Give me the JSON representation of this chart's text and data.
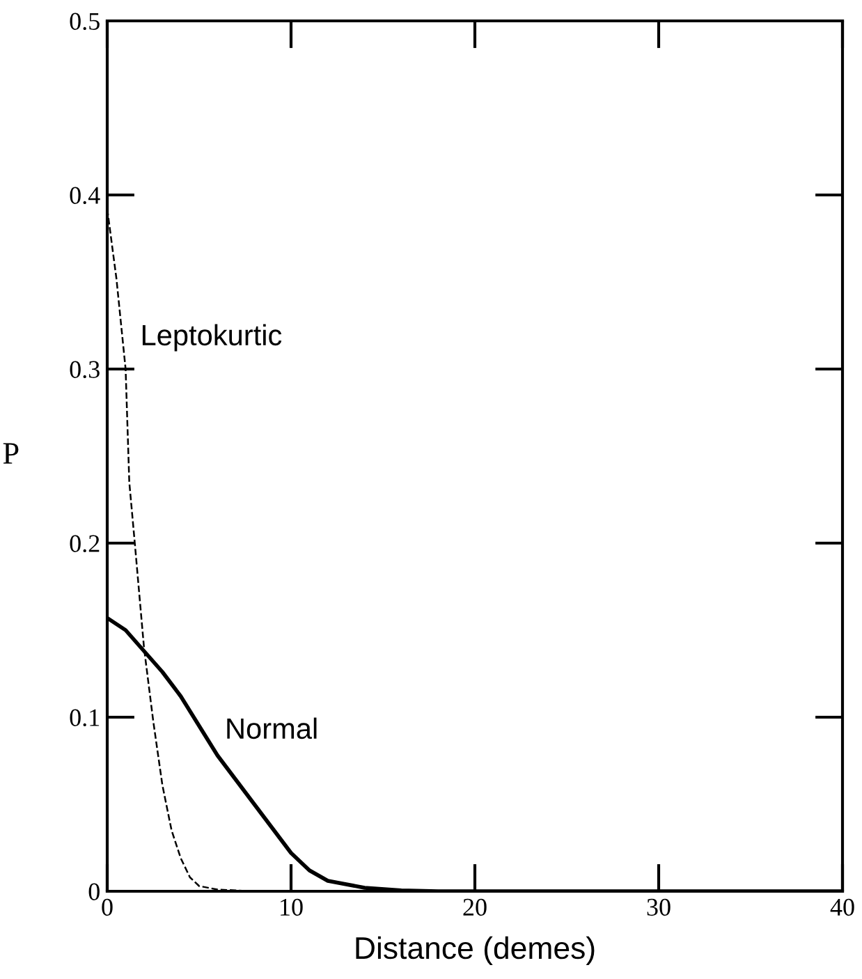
{
  "chart_data": {
    "type": "line",
    "xlabel": "Distance (demes)",
    "ylabel": "P",
    "xlim": [
      0,
      40
    ],
    "ylim": [
      0,
      0.5
    ],
    "xticks": [
      0,
      10,
      20,
      30,
      40
    ],
    "yticks": [
      0,
      0.1,
      0.2,
      0.3,
      0.4,
      0.5
    ],
    "grid": false,
    "legend": false,
    "marker": "none",
    "series": [
      {
        "name": "Leptokurtic",
        "color": "#000000",
        "line_style": "dashed",
        "x": [
          0,
          0.5,
          1,
          1.2,
          1.5,
          2,
          2.5,
          3,
          3.5,
          4,
          4.5,
          5,
          6,
          8,
          40
        ],
        "values": [
          0.392,
          0.352,
          0.3,
          0.235,
          0.2,
          0.14,
          0.098,
          0.061,
          0.035,
          0.019,
          0.008,
          0.003,
          0.001,
          0,
          0
        ]
      },
      {
        "name": "Normal",
        "color": "#000000",
        "line_style": "solid",
        "x": [
          0,
          1,
          2,
          3,
          4,
          5,
          6,
          7,
          8,
          9,
          10,
          11,
          12,
          13,
          14,
          16,
          18,
          40
        ],
        "values": [
          0.157,
          0.15,
          0.138,
          0.126,
          0.112,
          0.095,
          0.078,
          0.064,
          0.05,
          0.036,
          0.022,
          0.012,
          0.006,
          0.004,
          0.002,
          0.0005,
          0,
          0
        ]
      }
    ]
  }
}
